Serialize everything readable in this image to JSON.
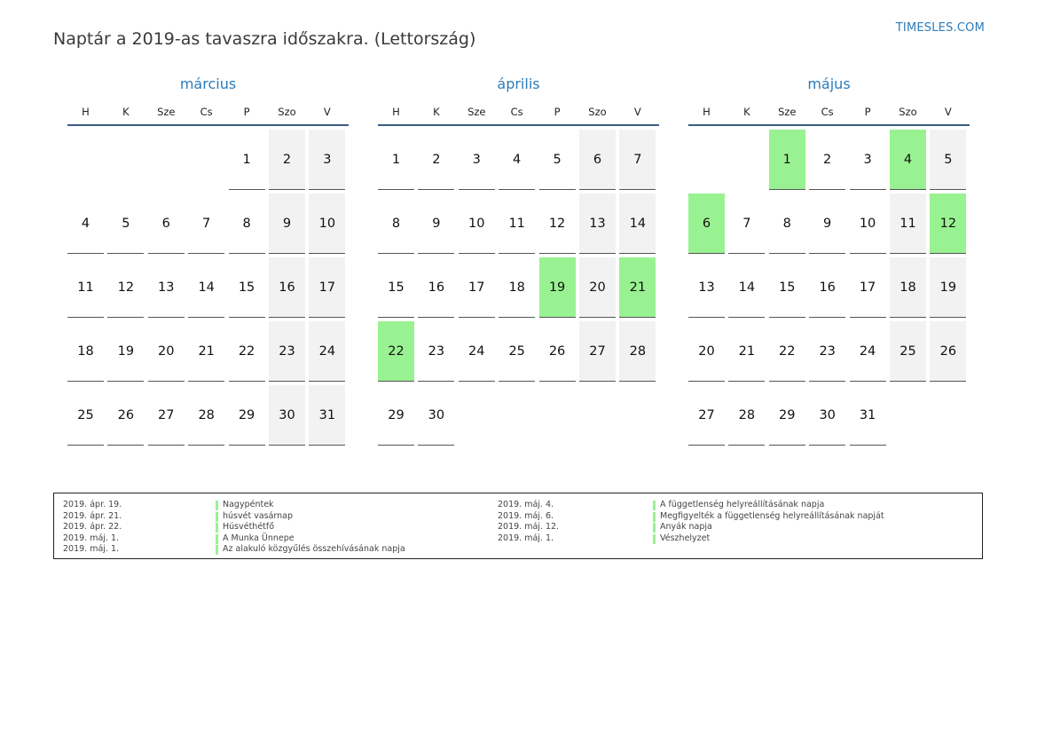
{
  "title": "Naptár a 2019-as tavaszra időszakra. (Lettország)",
  "site": "TIMESLES.COM",
  "weekdays": [
    "H",
    "K",
    "Sze",
    "Cs",
    "P",
    "Szo",
    "V"
  ],
  "colors": {
    "accent": "#2b7bb9",
    "holiday": "#99f291",
    "weekend": "#f2f2f2",
    "rule": "#3b5b80"
  },
  "months": [
    {
      "name": "március",
      "offset": 4,
      "days": 31,
      "holidays": []
    },
    {
      "name": "április",
      "offset": 0,
      "days": 30,
      "holidays": [
        19,
        21,
        22
      ]
    },
    {
      "name": "május",
      "offset": 2,
      "days": 31,
      "holidays": [
        1,
        4,
        6,
        12
      ]
    }
  ],
  "legend": {
    "left": [
      {
        "date": "2019. ápr. 19.",
        "name": "Nagypéntek"
      },
      {
        "date": "2019. ápr. 21.",
        "name": "húsvét vasárnap"
      },
      {
        "date": "2019. ápr. 22.",
        "name": "Húsvéthétfő"
      },
      {
        "date": "2019. máj. 1.",
        "name": "A Munka Ünnepe"
      },
      {
        "date": "2019. máj. 1.",
        "name": "Az alakuló közgyűlés összehívásának napja"
      }
    ],
    "right": [
      {
        "date": "2019. máj. 4.",
        "name": "A függetlenség helyreállításának napja"
      },
      {
        "date": "2019. máj. 6.",
        "name": "Megfigyelték a függetlenség helyreállításának napját"
      },
      {
        "date": "2019. máj. 12.",
        "name": "Anyák napja"
      },
      {
        "date": "2019. máj. 1.",
        "name": "Vészhelyzet"
      }
    ]
  }
}
